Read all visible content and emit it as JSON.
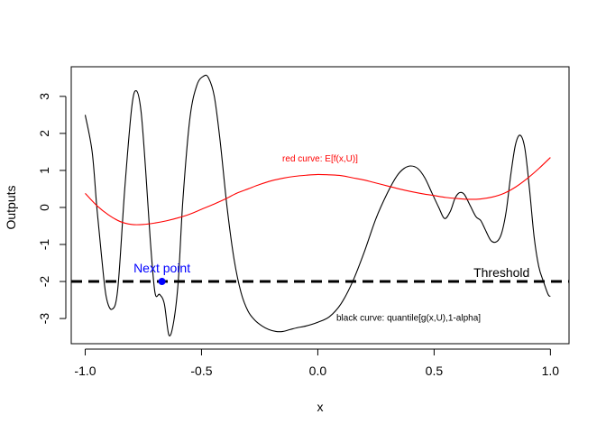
{
  "chart_data": {
    "type": "line",
    "title": "",
    "xlabel": "x",
    "ylabel": "Outputs",
    "xlim": [
      -1.06,
      1.08
    ],
    "ylim": [
      -3.68,
      3.8
    ],
    "x_ticks": [
      -1.0,
      -0.5,
      0.0,
      0.5,
      1.0
    ],
    "x_tick_labels": [
      "-1.0",
      "-0.5",
      "0.0",
      "0.5",
      "1.0"
    ],
    "y_ticks": [
      -3,
      -2,
      -1,
      0,
      1,
      2,
      3
    ],
    "y_tick_labels": [
      "-3",
      "-2",
      "-1",
      "0",
      "1",
      "2",
      "3"
    ],
    "grid": false,
    "series": [
      {
        "color": "#000000",
        "x": [
          -1.0,
          -0.97,
          -0.95,
          -0.93,
          -0.91,
          -0.885,
          -0.86,
          -0.83,
          -0.8,
          -0.78,
          -0.76,
          -0.74,
          -0.72,
          -0.7,
          -0.68,
          -0.66,
          -0.64,
          -0.62,
          -0.6,
          -0.58,
          -0.55,
          -0.52,
          -0.49,
          -0.47,
          -0.445,
          -0.42,
          -0.39,
          -0.36,
          -0.33,
          -0.3,
          -0.27,
          -0.24,
          -0.21,
          -0.18,
          -0.15,
          -0.12,
          -0.09,
          -0.05,
          0.0,
          0.05,
          0.1,
          0.15,
          0.2,
          0.25,
          0.3,
          0.34,
          0.37,
          0.4,
          0.43,
          0.46,
          0.49,
          0.52,
          0.545,
          0.57,
          0.59,
          0.61,
          0.63,
          0.655,
          0.68,
          0.7,
          0.72,
          0.745,
          0.77,
          0.79,
          0.81,
          0.83,
          0.85,
          0.87,
          0.89,
          0.91,
          0.93,
          0.95,
          0.97,
          0.99,
          1.0
        ],
        "y": [
          2.5,
          1.5,
          0.0,
          -1.3,
          -2.4,
          -2.75,
          -2.2,
          0.5,
          2.7,
          3.15,
          2.6,
          1.0,
          -0.9,
          -2.3,
          -2.35,
          -2.6,
          -3.45,
          -3.1,
          -2.0,
          0.2,
          2.4,
          3.3,
          3.55,
          3.5,
          3.0,
          1.8,
          0.0,
          -1.4,
          -2.3,
          -2.8,
          -3.05,
          -3.2,
          -3.3,
          -3.35,
          -3.35,
          -3.3,
          -3.25,
          -3.2,
          -3.1,
          -2.95,
          -2.6,
          -2.0,
          -1.2,
          -0.3,
          0.4,
          0.85,
          1.05,
          1.12,
          1.05,
          0.8,
          0.4,
          0.0,
          -0.3,
          -0.1,
          0.25,
          0.4,
          0.35,
          0.05,
          -0.25,
          -0.35,
          -0.6,
          -0.9,
          -0.92,
          -0.7,
          -0.1,
          0.9,
          1.7,
          1.95,
          1.6,
          0.5,
          -0.8,
          -1.6,
          -2.0,
          -2.35,
          -2.4
        ]
      },
      {
        "color": "#ff0000",
        "x": [
          -1.0,
          -0.95,
          -0.9,
          -0.85,
          -0.8,
          -0.75,
          -0.7,
          -0.65,
          -0.6,
          -0.55,
          -0.5,
          -0.45,
          -0.4,
          -0.35,
          -0.3,
          -0.25,
          -0.2,
          -0.15,
          -0.1,
          -0.05,
          0.0,
          0.05,
          0.1,
          0.15,
          0.2,
          0.25,
          0.3,
          0.35,
          0.4,
          0.45,
          0.5,
          0.55,
          0.6,
          0.65,
          0.7,
          0.75,
          0.8,
          0.85,
          0.9,
          0.95,
          1.0
        ],
        "y": [
          0.38,
          0.05,
          -0.2,
          -0.38,
          -0.46,
          -0.46,
          -0.42,
          -0.36,
          -0.28,
          -0.18,
          -0.05,
          0.08,
          0.22,
          0.38,
          0.5,
          0.62,
          0.72,
          0.79,
          0.84,
          0.87,
          0.89,
          0.88,
          0.86,
          0.8,
          0.74,
          0.66,
          0.58,
          0.5,
          0.43,
          0.37,
          0.32,
          0.27,
          0.24,
          0.22,
          0.23,
          0.28,
          0.38,
          0.55,
          0.78,
          1.05,
          1.35
        ]
      }
    ],
    "threshold": {
      "y": -2,
      "label": "Threshold",
      "color": "#000000"
    },
    "next_point": {
      "x": -0.67,
      "y": -2,
      "label": "Next point",
      "color": "#0000ff"
    },
    "annotations": [
      {
        "text": "red curve: E[f(x,U)]",
        "x": 0.01,
        "y": 1.3,
        "color": "#ff0000"
      },
      {
        "text": "black curve: quantile[g(x,U),1-alpha]",
        "x": 0.39,
        "y": -3.0,
        "color": "#000000"
      }
    ]
  }
}
